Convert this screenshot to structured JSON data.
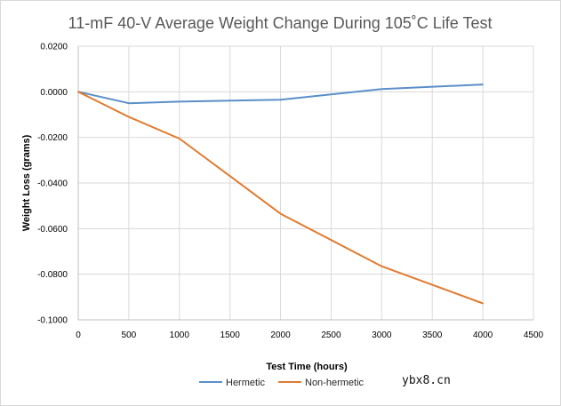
{
  "chart_data": {
    "type": "line",
    "title": "11-mF 40-V Average Weight Change During 105˚C Life Test",
    "xlabel": "Test Time (hours)",
    "ylabel": "Weight Loss (grams)",
    "xlim": [
      0,
      4500
    ],
    "ylim": [
      -0.1,
      0.02
    ],
    "x_ticks": [
      0,
      500,
      1000,
      1500,
      2000,
      2500,
      3000,
      3500,
      4000,
      4500
    ],
    "x_tick_labels": [
      "0",
      "500",
      "1000",
      "1500",
      "2000",
      "2500",
      "3000",
      "3500",
      "4000",
      "4500"
    ],
    "y_ticks": [
      0.02,
      0.0,
      -0.02,
      -0.04,
      -0.06,
      -0.08,
      -0.1
    ],
    "y_tick_labels": [
      "0.0200",
      "0.0000",
      "-0.0200",
      "-0.0400",
      "-0.0600",
      "-0.0800",
      "-0.1000"
    ],
    "grid": "vertical and horizontal",
    "legend_position": "bottom",
    "series": [
      {
        "name": "Hermetic",
        "color": "#5b8fc9",
        "x": [
          0,
          500,
          1000,
          2000,
          3000,
          4000
        ],
        "values": [
          0.0,
          -0.005,
          -0.0043,
          -0.0035,
          0.0012,
          0.0032
        ]
      },
      {
        "name": "Non-hermetic",
        "color": "#e07b30",
        "x": [
          0,
          500,
          1000,
          2000,
          3000,
          4000
        ],
        "values": [
          0.0,
          -0.011,
          -0.0205,
          -0.0535,
          -0.0765,
          -0.0928
        ]
      }
    ]
  },
  "watermark": "ybx8.cn"
}
